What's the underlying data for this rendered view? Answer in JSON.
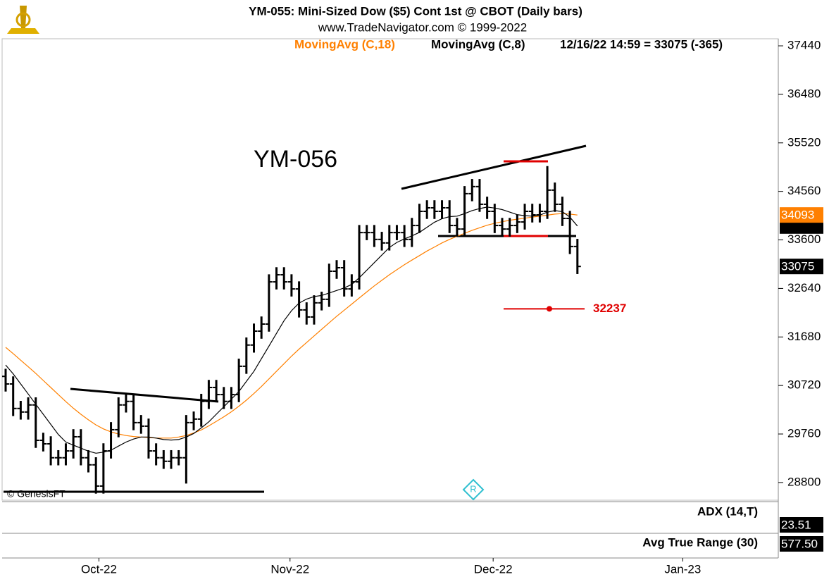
{
  "chart_data": {
    "type": "ohlc",
    "title": "YM-055:  Mini-Sized Dow ($5) Cont 1st @ CBOT  (Daily bars)",
    "subtitle": "www.TradeNavigator.com © 1999-2022",
    "status": "12/16/22 14:59 = 33075 (-365)",
    "annotation": "YM-056",
    "watermark": "© GenesisFT",
    "target": 32237,
    "target_color": "#e00000",
    "bar_color": "#000000",
    "open": [
      30900,
      30750,
      30265,
      30195,
      30335,
      29635,
      29565,
      29290,
      29290,
      29425,
      29705,
      29290,
      29150,
      28730,
      29425,
      29845,
      30335,
      30405,
      29985,
      29915,
      29425,
      29290,
      29220,
      29290,
      29290,
      29985,
      30055,
      30405,
      30680,
      30540,
      30405,
      30540,
      31100,
      31520,
      31795,
      31935,
      32770,
      32910,
      32770,
      32630,
      32215,
      32075,
      32355,
      32425,
      32980,
      33050,
      32630,
      32770,
      33745,
      33745,
      33610,
      33540,
      33745,
      33745,
      33610,
      33885,
      34165,
      34235,
      34165,
      34235,
      33885,
      33815,
      34515,
      34655,
      34305,
      34165,
      33885,
      33815,
      33885,
      33955,
      34165,
      34095,
      34165,
      34585,
      34305,
      34025,
      33470
    ],
    "high": [
      31050,
      30900,
      30415,
      30485,
      30485,
      29785,
      29715,
      29440,
      29575,
      29855,
      29855,
      29440,
      29300,
      29575,
      29995,
      30485,
      30555,
      30555,
      30135,
      30065,
      29575,
      29440,
      29440,
      29440,
      30135,
      30205,
      30555,
      30830,
      30830,
      30690,
      30690,
      31250,
      31670,
      31945,
      32085,
      32920,
      33060,
      33060,
      32920,
      32780,
      32365,
      32505,
      32575,
      33130,
      33200,
      33200,
      32920,
      33895,
      33895,
      33895,
      33760,
      33895,
      33895,
      33895,
      34035,
      34315,
      34385,
      34385,
      34385,
      34385,
      34035,
      34665,
      34805,
      34805,
      34455,
      34315,
      34035,
      34035,
      34105,
      34315,
      34315,
      34315,
      35060,
      34735,
      34455,
      34175,
      33620
    ],
    "low": [
      30600,
      30115,
      30045,
      30045,
      29485,
      29415,
      29140,
      29140,
      29140,
      29275,
      29140,
      29000,
      28580,
      28580,
      29275,
      29695,
      30185,
      29835,
      29765,
      29275,
      29140,
      29070,
      29070,
      29140,
      28780,
      29835,
      29905,
      30255,
      30390,
      30255,
      30255,
      30390,
      30950,
      31370,
      31645,
      31785,
      32620,
      32620,
      32480,
      32065,
      31925,
      31925,
      32205,
      32275,
      32830,
      32480,
      32480,
      32620,
      33595,
      33460,
      33390,
      33390,
      33595,
      33460,
      33460,
      33735,
      34015,
      34015,
      34015,
      33735,
      33665,
      33665,
      34365,
      34155,
      34015,
      33735,
      33665,
      33665,
      33735,
      33805,
      33945,
      33945,
      34015,
      34155,
      33875,
      33320,
      32925
    ],
    "close": [
      30750,
      30265,
      30195,
      30335,
      29635,
      29565,
      29290,
      29290,
      29425,
      29705,
      29290,
      29150,
      28730,
      29425,
      29845,
      30335,
      30405,
      29985,
      29915,
      29425,
      29290,
      29220,
      29290,
      29290,
      29985,
      30055,
      30405,
      30680,
      30540,
      30405,
      30540,
      31100,
      31520,
      31795,
      31935,
      32770,
      32910,
      32770,
      32630,
      32215,
      32075,
      32355,
      32425,
      32980,
      33050,
      32630,
      32770,
      33745,
      33745,
      33610,
      33540,
      33745,
      33745,
      33610,
      33885,
      34165,
      34235,
      34165,
      34235,
      33885,
      33815,
      34515,
      34655,
      34305,
      34165,
      33885,
      33815,
      33885,
      33955,
      34165,
      34095,
      34165,
      34585,
      34305,
      34025,
      33470,
      33075
    ],
    "series": [
      {
        "name": "MovingAvg (C,18)",
        "color": "#ff8000",
        "last": 34093,
        "values": [
          31475,
          31350,
          31220,
          31090,
          30960,
          30820,
          30680,
          30540,
          30400,
          30270,
          30150,
          30040,
          29940,
          29860,
          29800,
          29760,
          29730,
          29710,
          29700,
          29690,
          29680,
          29680,
          29680,
          29700,
          29730,
          29780,
          29840,
          29920,
          30010,
          30100,
          30200,
          30310,
          30430,
          30560,
          30700,
          30850,
          31000,
          31150,
          31300,
          31440,
          31570,
          31700,
          31830,
          31960,
          32090,
          32210,
          32330,
          32450,
          32570,
          32690,
          32800,
          32910,
          33010,
          33110,
          33200,
          33290,
          33380,
          33460,
          33540,
          33610,
          33670,
          33730,
          33790,
          33840,
          33890,
          33930,
          33960,
          33990,
          34010,
          34030,
          34050,
          34070,
          34090,
          34110,
          34120,
          34110,
          34093
        ]
      },
      {
        "name": "MovingAvg (C,8)",
        "color": "#000000",
        "last": 33875,
        "values": [
          31125,
          30950,
          30750,
          30550,
          30350,
          30150,
          29950,
          29750,
          29600,
          29540,
          29480,
          29420,
          29380,
          29400,
          29440,
          29520,
          29600,
          29660,
          29700,
          29700,
          29680,
          29650,
          29640,
          29650,
          29700,
          29770,
          29880,
          30000,
          30150,
          30300,
          30450,
          30600,
          30800,
          31000,
          31250,
          31500,
          31750,
          32000,
          32200,
          32350,
          32430,
          32480,
          32500,
          32550,
          32600,
          32650,
          32720,
          32850,
          33000,
          33150,
          33300,
          33450,
          33550,
          33620,
          33680,
          33750,
          33850,
          33950,
          34020,
          34060,
          34070,
          34120,
          34180,
          34220,
          34250,
          34230,
          34200,
          34150,
          34100,
          34080,
          34070,
          34090,
          34150,
          34180,
          34160,
          34050,
          33875
        ]
      }
    ],
    "indicators": [
      {
        "name": "ADX (14,T)",
        "last": 23.51,
        "last_label": "23.51"
      },
      {
        "name": "Avg True Range (30)",
        "last": 577.5,
        "last_label": "577.50"
      }
    ],
    "xlim": [
      -0.75,
      102.7
    ],
    "xticks": [
      {
        "value": 12.4,
        "label": "Oct-22"
      },
      {
        "value": 37.8,
        "label": "Nov-22"
      },
      {
        "value": 64.8,
        "label": "Dec-22"
      },
      {
        "value": 90,
        "label": "Jan-23"
      }
    ],
    "ylim": [
      28450,
      37580
    ],
    "yticks": [
      37440,
      36480,
      35520,
      34560,
      33600,
      32640,
      31680,
      30720,
      29760,
      28800
    ]
  }
}
